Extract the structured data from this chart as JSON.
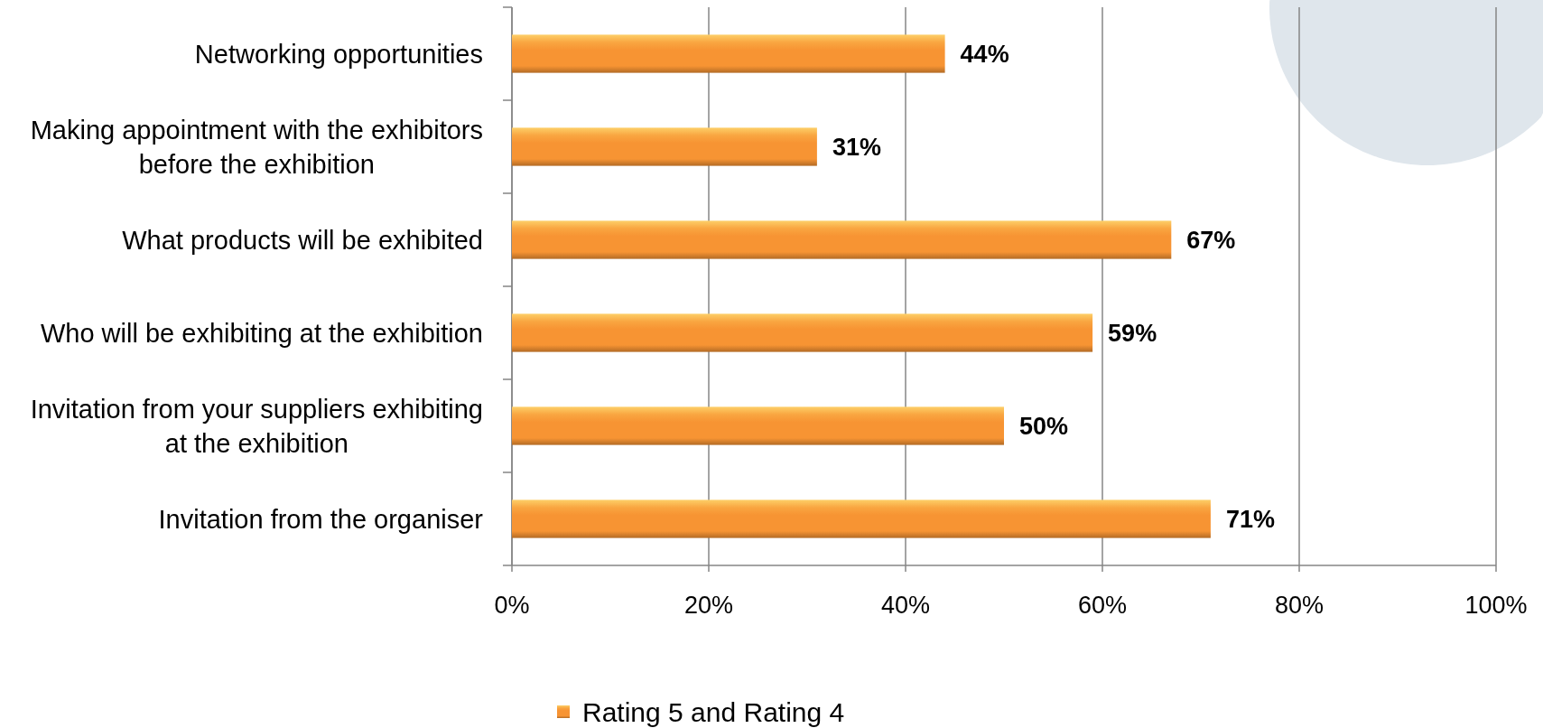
{
  "chart_data": {
    "type": "bar",
    "orientation": "horizontal",
    "categories": [
      "Networking opportunities",
      "Making appointment with the exhibitors before the exhibition",
      "What products will be exhibited",
      "Who will be exhibiting at the exhibition",
      "Invitation from your suppliers exhibiting at the exhibition",
      "Invitation from the organiser"
    ],
    "series": [
      {
        "name": "Rating 5 and Rating 4",
        "color": "#f79433",
        "values": [
          44,
          31,
          67,
          59,
          50,
          71
        ],
        "value_labels": [
          "44%",
          "31%",
          "67%",
          "59%",
          "50%",
          "71%"
        ]
      }
    ],
    "xlim": [
      0,
      100
    ],
    "xticks": [
      {
        "value": 0,
        "label": "0%"
      },
      {
        "value": 20,
        "label": "20%"
      },
      {
        "value": 40,
        "label": "40%"
      },
      {
        "value": 60,
        "label": "60%"
      },
      {
        "value": 80,
        "label": "80%"
      },
      {
        "value": 100,
        "label": "100%"
      }
    ],
    "grid": "x",
    "legend": "bottom"
  }
}
